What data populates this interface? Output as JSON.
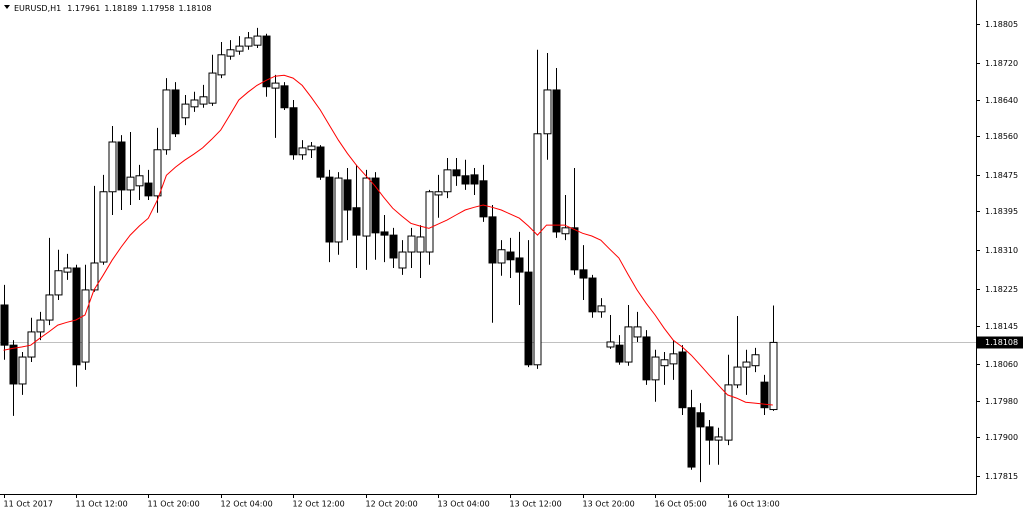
{
  "chart_data": {
    "type": "candlestick",
    "symbol": "EURUSD,H1",
    "categories": [
      "11 Oct 2017",
      null,
      null,
      null,
      null,
      null,
      null,
      null,
      "11 Oct 12:00",
      null,
      null,
      null,
      null,
      null,
      null,
      null,
      "11 Oct 20:00",
      null,
      null,
      null,
      null,
      null,
      null,
      null,
      "12 Oct 04:00",
      null,
      null,
      null,
      null,
      null,
      null,
      null,
      "12 Oct 12:00",
      null,
      null,
      null,
      null,
      null,
      null,
      null,
      "12 Oct 20:00",
      null,
      null,
      null,
      null,
      null,
      null,
      null,
      "13 Oct 04:00",
      null,
      null,
      null,
      null,
      null,
      null,
      null,
      "13 Oct 12:00",
      null,
      null,
      null,
      null,
      null,
      null,
      null,
      "13 Oct 20:00",
      null,
      null,
      null,
      null,
      null,
      null,
      null,
      "16 Oct 05:00",
      null,
      null,
      null,
      null,
      null,
      null,
      null,
      "16 Oct 13:00",
      null,
      null,
      null,
      null,
      null
    ],
    "open": [
      1.1819,
      1.18102,
      1.18017,
      1.18076,
      1.18131,
      1.18157,
      1.18212,
      1.18262,
      1.18271,
      1.18065,
      1.18223,
      1.18284,
      1.18438,
      1.18547,
      1.18442,
      1.18451,
      1.18457,
      1.18429,
      1.1853,
      1.18661,
      1.186,
      1.18624,
      1.1863,
      1.18632,
      1.18694,
      1.18735,
      1.18746,
      1.18757,
      1.18759,
      1.18779,
      1.18665,
      1.1867,
      1.18622,
      1.18519,
      1.1853,
      1.18536,
      1.1847,
      1.18328,
      1.18464,
      1.18403,
      1.18341,
      1.18468,
      1.1835,
      1.18343,
      1.18271,
      1.18306,
      1.18306,
      1.18306,
      1.18431,
      1.18438,
      1.18486,
      1.18473,
      1.18475,
      1.18462,
      1.18383,
      1.18282,
      1.18306,
      1.18293,
      1.18262,
      1.18059,
      1.18565,
      1.18661,
      1.18346,
      1.18359,
      1.18267,
      1.18249,
      1.18175,
      1.18098,
      1.18102,
      1.18065,
      1.1812,
      1.1812,
      1.18026,
      1.18057,
      1.18061,
      1.18087,
      1.17965,
      1.17954,
      1.17923,
      1.17894,
      1.17894,
      1.18015,
      1.18054,
      1.18057,
      1.18021,
      1.17961
    ],
    "high": [
      1.18234,
      1.18113,
      1.18087,
      1.18162,
      1.18175,
      1.18337,
      1.18311,
      1.18302,
      1.18278,
      1.18278,
      1.18451,
      1.18475,
      1.18582,
      1.18562,
      1.18569,
      1.18497,
      1.18486,
      1.18578,
      1.18687,
      1.18678,
      1.1865,
      1.18657,
      1.18672,
      1.18738,
      1.18766,
      1.1877,
      1.18779,
      1.18788,
      1.18797,
      1.18784,
      1.18694,
      1.18678,
      1.18639,
      1.18551,
      1.18547,
      1.1854,
      1.18486,
      1.18481,
      1.1849,
      1.18497,
      1.18486,
      1.18481,
      1.18387,
      1.18359,
      1.18332,
      1.18359,
      1.18365,
      1.18442,
      1.18475,
      1.18512,
      1.18512,
      1.18508,
      1.1849,
      1.18497,
      1.18409,
      1.18332,
      1.18337,
      1.1835,
      1.18332,
      1.18749,
      1.18742,
      1.18709,
      1.18431,
      1.1849,
      1.18321,
      1.18256,
      1.18205,
      1.18168,
      1.18124,
      1.1819,
      1.18175,
      1.18135,
      1.18092,
      1.18087,
      1.18113,
      1.18102,
      1.18004,
      1.17975,
      1.17938,
      1.17921,
      1.18081,
      1.18166,
      1.18092,
      1.18096,
      1.18037,
      1.18189
    ],
    "low": [
      1.1807,
      1.17947,
      1.17993,
      1.18065,
      1.18113,
      1.18146,
      1.18201,
      1.18245,
      1.18011,
      1.18048,
      1.18219,
      1.18278,
      1.18387,
      1.18398,
      1.18409,
      1.1842,
      1.1842,
      1.18392,
      1.18519,
      1.18558,
      1.18584,
      1.18613,
      1.18622,
      1.18626,
      1.18687,
      1.18727,
      1.18738,
      1.18749,
      1.18753,
      1.18646,
      1.18556,
      1.18617,
      1.18508,
      1.18508,
      1.18512,
      1.18464,
      1.18284,
      1.183,
      1.18332,
      1.18271,
      1.18267,
      1.18289,
      1.18284,
      1.18271,
      1.18256,
      1.18271,
      1.18249,
      1.18278,
      1.18381,
      1.18424,
      1.18451,
      1.18442,
      1.18431,
      1.18372,
      1.18151,
      1.18254,
      1.18249,
      1.1819,
      1.18054,
      1.1805,
      1.18508,
      1.18337,
      1.18332,
      1.18256,
      1.18201,
      1.18162,
      1.18162,
      1.18094,
      1.18059,
      1.18057,
      1.18109,
      1.18015,
      1.17978,
      1.18015,
      1.18026,
      1.17949,
      1.17829,
      1.17802,
      1.1784,
      1.1784,
      1.17883,
      1.18008,
      1.17993,
      1.18043,
      1.17949,
      1.17958
    ],
    "close": [
      1.18102,
      1.18017,
      1.18076,
      1.18131,
      1.18157,
      1.18212,
      1.18265,
      1.18271,
      1.18059,
      1.18223,
      1.18282,
      1.18438,
      1.18547,
      1.18442,
      1.1847,
      1.18473,
      1.18429,
      1.1853,
      1.18661,
      1.18565,
      1.1863,
      1.18639,
      1.18646,
      1.18698,
      1.18738,
      1.18749,
      1.18757,
      1.18775,
      1.18779,
      1.18668,
      1.18676,
      1.18622,
      1.18519,
      1.18534,
      1.18538,
      1.1847,
      1.18328,
      1.18468,
      1.18398,
      1.18343,
      1.18468,
      1.18348,
      1.18343,
      1.18293,
      1.18306,
      1.18341,
      1.18339,
      1.18438,
      1.18438,
      1.18486,
      1.18473,
      1.18455,
      1.18455,
      1.18383,
      1.18282,
      1.18311,
      1.18289,
      1.18262,
      1.18059,
      1.18565,
      1.18661,
      1.1835,
      1.18359,
      1.18267,
      1.18249,
      1.18175,
      1.18188,
      1.18109,
      1.18065,
      1.18142,
      1.18142,
      1.18026,
      1.18076,
      1.1807,
      1.18083,
      1.17965,
      1.17835,
      1.17923,
      1.17894,
      1.17901,
      1.18015,
      1.18054,
      1.18065,
      1.18081,
      1.17965,
      1.18108
    ],
    "ma": {
      "color": "#ff0000",
      "values": [
        1.18091,
        1.18095,
        1.18098,
        1.18102,
        1.18117,
        1.18131,
        1.18146,
        1.18152,
        1.18157,
        1.18168,
        1.18223,
        1.18255,
        1.18288,
        1.18317,
        1.18343,
        1.18363,
        1.1838,
        1.1842,
        1.18474,
        1.18492,
        1.18507,
        1.1852,
        1.18534,
        1.18553,
        1.18573,
        1.18606,
        1.18639,
        1.18656,
        1.18671,
        1.18682,
        1.18691,
        1.18693,
        1.18687,
        1.18671,
        1.18645,
        1.18617,
        1.18584,
        1.18551,
        1.18522,
        1.18496,
        1.18474,
        1.18452,
        1.18426,
        1.18402,
        1.18385,
        1.18369,
        1.18363,
        1.18358,
        1.18367,
        1.18376,
        1.18387,
        1.18398,
        1.18404,
        1.18409,
        1.18404,
        1.18398,
        1.18389,
        1.1838,
        1.18363,
        1.18343,
        1.18365,
        1.18365,
        1.18365,
        1.18356,
        1.18347,
        1.18341,
        1.18332,
        1.18312,
        1.18293,
        1.18257,
        1.18223,
        1.18194,
        1.18168,
        1.18139,
        1.18113,
        1.18098,
        1.1808,
        1.18058,
        1.18036,
        1.18014,
        1.17993,
        1.17986,
        1.17977,
        1.17975,
        1.17973,
        1.17971
      ]
    },
    "up_color": "#ffffff",
    "down_color": "#000000",
    "ylim": [
      1.17776,
      1.18858
    ],
    "yticks": [
      1.18805,
      {
        "value": 1.1872,
        "label": "1.18720"
      },
      {
        "value": 1.1864,
        "label": "1.18640"
      },
      {
        "value": 1.1856,
        "label": "1.18560"
      },
      1.18475,
      1.18395,
      {
        "value": 1.1831,
        "label": "1.18310"
      },
      1.18225,
      1.18145,
      {
        "value": 1.1806,
        "label": "1.18060"
      },
      {
        "value": 1.1798,
        "label": "1.17980"
      },
      {
        "value": 1.179,
        "label": "1.17900"
      },
      1.17815
    ]
  }
}
